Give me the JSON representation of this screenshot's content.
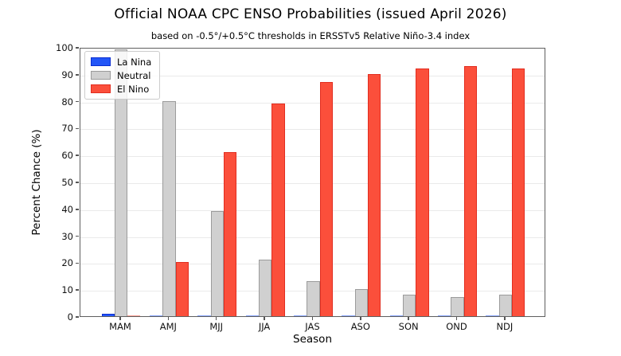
{
  "chart_data": {
    "type": "bar",
    "title": "Official NOAA CPC ENSO Probabilities (issued April 2026)",
    "subtitle": "based on -0.5°/+0.5°C thresholds in ERSSTv5 Relative Niño-3.4 index",
    "xlabel": "Season",
    "ylabel": "Percent Chance (%)",
    "ylim": [
      0,
      100
    ],
    "yticks": [
      0,
      10,
      20,
      30,
      40,
      50,
      60,
      70,
      80,
      90,
      100
    ],
    "grid": true,
    "legend_position": "upper-left",
    "categories": [
      "MAM",
      "AMJ",
      "MJJ",
      "JJA",
      "JAS",
      "ASO",
      "SON",
      "OND",
      "NDJ"
    ],
    "series": [
      {
        "name": "La Nina",
        "color": "#2356f7",
        "edge_color": "#0c2ed1",
        "values": [
          1,
          0,
          0,
          0,
          0,
          0,
          0,
          0,
          0
        ]
      },
      {
        "name": "Neutral",
        "color": "#d0d0d0",
        "edge_color": "#9b9b9b",
        "values": [
          99,
          80,
          39,
          21,
          13,
          10,
          8,
          7,
          8
        ]
      },
      {
        "name": "El Nino",
        "color": "#fb4f3b",
        "edge_color": "#e22d1f",
        "values": [
          0,
          20,
          61,
          79,
          87,
          90,
          92,
          93,
          92
        ]
      }
    ]
  }
}
